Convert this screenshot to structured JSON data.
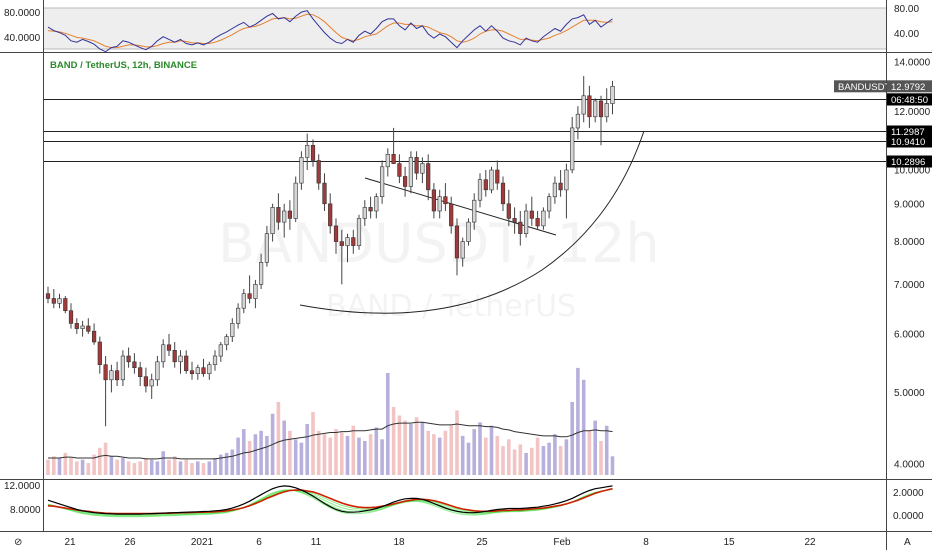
{
  "chart_title": "BAND / TetherUS, 12h, BINANCE",
  "watermark": {
    "symbol": "BANDUSDT, 12h",
    "name": "BAND / TetherUS"
  },
  "colors": {
    "up_candle": "#d6d6d6",
    "down_candle": "#a13a3a",
    "wick": "#444444",
    "vol_up": "#b8b0dc",
    "vol_down": "#f2c4c4",
    "vol_ma": "#333333",
    "rsi_line": "#333399",
    "rsi_signal": "#e6802f",
    "rsi_band": "#eeeeee",
    "title": "#2b8a2b",
    "level_line": "#222222",
    "bottom_fast": "#000000",
    "bottom_slow": "#cc2200",
    "bottom_ribbon": "#33dd33"
  },
  "chart_data": {
    "type": "candlestick",
    "x_axis": {
      "tick_labels": [
        "21",
        "26",
        "2021",
        "6",
        "11",
        "18",
        "25",
        "Feb",
        "8",
        "15",
        "22"
      ]
    },
    "price_axis": {
      "range": [
        3.5,
        14.5
      ],
      "tick_labels": [
        "14.0000",
        "12.0000",
        "10.0000",
        "9.0000",
        "8.0000",
        "7.0000",
        "6.0000",
        "5.0000",
        "4.0000"
      ],
      "ticks": [
        14,
        12,
        10,
        9,
        8,
        7,
        6,
        5,
        4
      ],
      "scale": "log"
    },
    "horizontal_levels": [
      {
        "label": "12.4729",
        "value": 12.4729
      },
      {
        "label": "11.2987",
        "value": 11.2987
      },
      {
        "label": "10.9410",
        "value": 10.941
      },
      {
        "label": "10.2896",
        "value": 10.2896
      }
    ],
    "last_price_tag": {
      "symbol": "BANDUSDT",
      "price": "12.9792",
      "countdown": "06:48:50",
      "value": 12.9792
    },
    "rsi": {
      "axis_labels": [
        "80.0000",
        "40.0000"
      ],
      "right_labels": [
        "80.00",
        "40.00"
      ],
      "band": [
        30,
        70
      ]
    },
    "bottom_indicator": {
      "left_labels": [
        "12.0000",
        "8.0000"
      ],
      "right_labels": [
        "2.0000",
        "0.0000"
      ]
    },
    "candles_ohlc": [
      [
        6.8,
        6.95,
        6.6,
        6.7
      ],
      [
        6.7,
        6.9,
        6.5,
        6.6
      ],
      [
        6.6,
        6.8,
        6.5,
        6.7
      ],
      [
        6.7,
        6.75,
        6.4,
        6.45
      ],
      [
        6.45,
        6.6,
        6.1,
        6.2
      ],
      [
        6.2,
        6.3,
        6.0,
        6.1
      ],
      [
        6.1,
        6.25,
        5.95,
        6.15
      ],
      [
        6.15,
        6.3,
        6.0,
        6.05
      ],
      [
        6.05,
        6.2,
        5.8,
        5.85
      ],
      [
        5.85,
        5.95,
        5.3,
        5.45
      ],
      [
        5.45,
        5.6,
        4.5,
        5.2
      ],
      [
        5.2,
        5.45,
        5.0,
        5.35
      ],
      [
        5.35,
        5.5,
        5.1,
        5.2
      ],
      [
        5.2,
        5.7,
        5.1,
        5.6
      ],
      [
        5.6,
        5.75,
        5.4,
        5.5
      ],
      [
        5.5,
        5.65,
        5.3,
        5.4
      ],
      [
        5.4,
        5.5,
        5.1,
        5.25
      ],
      [
        5.25,
        5.4,
        5.0,
        5.1
      ],
      [
        5.1,
        5.3,
        4.9,
        5.2
      ],
      [
        5.2,
        5.6,
        5.1,
        5.5
      ],
      [
        5.5,
        5.9,
        5.4,
        5.8
      ],
      [
        5.8,
        6.0,
        5.6,
        5.7
      ],
      [
        5.7,
        5.85,
        5.4,
        5.5
      ],
      [
        5.5,
        5.7,
        5.3,
        5.6
      ],
      [
        5.6,
        5.7,
        5.3,
        5.35
      ],
      [
        5.35,
        5.5,
        5.2,
        5.3
      ],
      [
        5.3,
        5.45,
        5.2,
        5.4
      ],
      [
        5.4,
        5.55,
        5.25,
        5.3
      ],
      [
        5.3,
        5.5,
        5.2,
        5.45
      ],
      [
        5.45,
        5.7,
        5.35,
        5.6
      ],
      [
        5.6,
        5.85,
        5.5,
        5.8
      ],
      [
        5.8,
        6.0,
        5.7,
        5.95
      ],
      [
        5.95,
        6.3,
        5.85,
        6.2
      ],
      [
        6.2,
        6.6,
        6.1,
        6.5
      ],
      [
        6.5,
        6.9,
        6.4,
        6.8
      ],
      [
        6.8,
        7.2,
        6.6,
        6.7
      ],
      [
        6.7,
        7.1,
        6.5,
        7.0
      ],
      [
        7.0,
        7.7,
        6.9,
        7.5
      ],
      [
        7.5,
        8.4,
        7.4,
        8.2
      ],
      [
        8.2,
        9.0,
        8.0,
        8.9
      ],
      [
        8.9,
        9.3,
        8.3,
        8.5
      ],
      [
        8.5,
        9.0,
        8.1,
        8.8
      ],
      [
        8.8,
        9.1,
        8.3,
        8.6
      ],
      [
        8.6,
        9.8,
        8.5,
        9.6
      ],
      [
        9.6,
        10.6,
        9.4,
        10.4
      ],
      [
        10.4,
        11.2,
        10.0,
        10.8
      ],
      [
        10.8,
        11.0,
        10.1,
        10.3
      ],
      [
        10.3,
        10.5,
        9.4,
        9.6
      ],
      [
        9.6,
        9.9,
        8.8,
        9.0
      ],
      [
        9.0,
        9.3,
        8.2,
        8.4
      ],
      [
        8.4,
        8.6,
        7.7,
        8.0
      ],
      [
        8.0,
        8.3,
        7.0,
        7.9
      ],
      [
        7.9,
        8.2,
        7.5,
        8.1
      ],
      [
        8.1,
        8.3,
        7.7,
        7.9
      ],
      [
        7.9,
        8.7,
        7.8,
        8.6
      ],
      [
        8.6,
        9.1,
        8.4,
        8.9
      ],
      [
        8.9,
        9.2,
        8.6,
        8.8
      ],
      [
        8.8,
        9.3,
        8.6,
        9.2
      ],
      [
        9.2,
        10.3,
        9.0,
        10.1
      ],
      [
        10.1,
        10.7,
        9.8,
        10.5
      ],
      [
        10.5,
        11.4,
        10.2,
        10.2
      ],
      [
        10.2,
        10.5,
        9.6,
        9.8
      ],
      [
        9.8,
        10.1,
        9.2,
        9.5
      ],
      [
        9.5,
        10.6,
        9.3,
        10.4
      ],
      [
        10.4,
        10.6,
        9.7,
        9.9
      ],
      [
        9.9,
        10.4,
        9.6,
        10.2
      ],
      [
        10.2,
        10.5,
        9.1,
        9.4
      ],
      [
        9.4,
        9.6,
        8.6,
        8.8
      ],
      [
        8.8,
        9.4,
        8.6,
        9.2
      ],
      [
        9.2,
        9.6,
        8.8,
        9.0
      ],
      [
        9.0,
        9.2,
        8.2,
        8.4
      ],
      [
        8.4,
        8.6,
        7.2,
        7.6
      ],
      [
        7.6,
        8.1,
        7.4,
        8.0
      ],
      [
        8.0,
        8.6,
        7.9,
        8.5
      ],
      [
        8.5,
        9.3,
        8.3,
        9.1
      ],
      [
        9.1,
        9.9,
        8.9,
        9.7
      ],
      [
        9.7,
        10.0,
        9.2,
        9.4
      ],
      [
        9.4,
        10.1,
        9.3,
        10.0
      ],
      [
        10.0,
        10.3,
        9.4,
        9.6
      ],
      [
        9.6,
        9.8,
        8.8,
        9.0
      ],
      [
        9.0,
        9.4,
        8.4,
        8.6
      ],
      [
        8.6,
        8.9,
        8.2,
        8.5
      ],
      [
        8.5,
        8.8,
        7.9,
        8.2
      ],
      [
        8.2,
        9.0,
        8.1,
        8.8
      ],
      [
        8.8,
        9.2,
        8.4,
        8.6
      ],
      [
        8.6,
        8.8,
        8.3,
        8.4
      ],
      [
        8.4,
        8.9,
        8.3,
        8.8
      ],
      [
        8.8,
        9.3,
        8.6,
        9.2
      ],
      [
        9.2,
        9.8,
        9.0,
        9.6
      ],
      [
        9.6,
        10.0,
        9.2,
        9.4
      ],
      [
        9.4,
        10.2,
        8.6,
        10.0
      ],
      [
        10.0,
        11.8,
        9.9,
        11.4
      ],
      [
        11.4,
        12.2,
        11.0,
        11.9
      ],
      [
        11.9,
        13.4,
        11.6,
        12.6
      ],
      [
        12.6,
        13.0,
        11.4,
        11.8
      ],
      [
        11.8,
        12.5,
        11.6,
        12.4
      ],
      [
        12.4,
        12.6,
        10.8,
        11.8
      ],
      [
        11.8,
        12.9,
        11.6,
        12.3
      ],
      [
        12.3,
        13.2,
        11.9,
        12.98
      ]
    ],
    "volumes": [
      0.9,
      1.1,
      1.0,
      1.3,
      1.0,
      0.8,
      0.9,
      0.7,
      1.2,
      1.6,
      1.9,
      1.1,
      0.9,
      1.0,
      0.8,
      0.7,
      0.8,
      1.0,
      0.9,
      0.8,
      1.4,
      0.9,
      1.1,
      0.8,
      0.9,
      0.7,
      0.8,
      0.7,
      0.8,
      1.0,
      1.2,
      1.3,
      1.5,
      2.2,
      2.7,
      2.0,
      2.4,
      2.6,
      2.3,
      3.6,
      4.3,
      3.2,
      2.6,
      2.1,
      1.9,
      3.0,
      3.7,
      2.6,
      2.4,
      2.2,
      2.7,
      2.5,
      2.3,
      2.9,
      2.2,
      2.0,
      2.4,
      2.8,
      2.1,
      6.0,
      4.0,
      3.5,
      3.2,
      3.0,
      3.4,
      3.1,
      2.6,
      2.4,
      2.2,
      2.6,
      2.9,
      3.8,
      2.3,
      1.9,
      2.7,
      3.1,
      2.2,
      2.9,
      2.3,
      1.7,
      2.1,
      1.5,
      1.8,
      1.3,
      1.6,
      2.2,
      1.7,
      1.9,
      2.4,
      1.7,
      2.1,
      4.3,
      6.3,
      5.6,
      2.6,
      3.2,
      2.0,
      2.9,
      1.1
    ],
    "volume_ma": [
      1.0,
      1.0,
      1.0,
      1.05,
      1.05,
      1.0,
      1.0,
      1.0,
      1.0,
      1.1,
      1.15,
      1.1,
      1.1,
      1.05,
      1.0,
      1.0,
      1.0,
      0.95,
      0.95,
      0.95,
      1.0,
      1.0,
      1.0,
      0.95,
      0.95,
      0.95,
      0.95,
      0.95,
      0.95,
      0.95,
      1.0,
      1.05,
      1.1,
      1.2,
      1.3,
      1.35,
      1.45,
      1.55,
      1.65,
      1.8,
      1.95,
      2.05,
      2.1,
      2.15,
      2.2,
      2.25,
      2.35,
      2.4,
      2.45,
      2.5,
      2.5,
      2.55,
      2.55,
      2.6,
      2.6,
      2.6,
      2.65,
      2.7,
      2.7,
      2.9,
      3.0,
      3.05,
      3.05,
      3.05,
      3.1,
      3.1,
      3.05,
      3.0,
      2.95,
      2.95,
      2.95,
      3.0,
      2.95,
      2.9,
      2.9,
      2.9,
      2.85,
      2.85,
      2.8,
      2.7,
      2.65,
      2.55,
      2.5,
      2.45,
      2.4,
      2.35,
      2.3,
      2.3,
      2.3,
      2.25,
      2.25,
      2.35,
      2.5,
      2.6,
      2.6,
      2.65,
      2.6,
      2.6,
      2.55
    ],
    "rsi_values": [
      60,
      55,
      52,
      48,
      40,
      38,
      42,
      39,
      35,
      28,
      24,
      30,
      32,
      40,
      38,
      34,
      30,
      27,
      32,
      40,
      46,
      42,
      38,
      42,
      36,
      34,
      37,
      34,
      38,
      44,
      49,
      53,
      58,
      63,
      67,
      60,
      64,
      70,
      76,
      80,
      72,
      74,
      68,
      76,
      82,
      84,
      72,
      62,
      52,
      44,
      38,
      36,
      42,
      38,
      48,
      54,
      50,
      58,
      68,
      72,
      72,
      62,
      56,
      66,
      58,
      62,
      50,
      44,
      50,
      46,
      38,
      30,
      40,
      48,
      56,
      62,
      54,
      62,
      54,
      44,
      40,
      38,
      34,
      44,
      40,
      38,
      46,
      52,
      58,
      54,
      64,
      72,
      74,
      78,
      64,
      70,
      60,
      66,
      72
    ],
    "rsi_signal": [
      55,
      54,
      53,
      51,
      48,
      45,
      44,
      42,
      40,
      36,
      32,
      30,
      30,
      32,
      34,
      34,
      33,
      31,
      31,
      33,
      36,
      38,
      38,
      40,
      39,
      37,
      37,
      36,
      36,
      38,
      41,
      45,
      49,
      54,
      58,
      60,
      61,
      64,
      68,
      72,
      73,
      74,
      72,
      73,
      76,
      79,
      78,
      74,
      68,
      60,
      52,
      45,
      42,
      40,
      42,
      46,
      48,
      50,
      56,
      62,
      66,
      66,
      64,
      64,
      62,
      62,
      60,
      56,
      52,
      50,
      46,
      40,
      38,
      40,
      44,
      50,
      54,
      56,
      56,
      54,
      50,
      46,
      42,
      42,
      41,
      40,
      42,
      44,
      48,
      51,
      55,
      60,
      65,
      70,
      70,
      70,
      68,
      67,
      68
    ],
    "bottom_fast": [
      10.2,
      9.8,
      9.4,
      9.0,
      8.6,
      8.2,
      7.9,
      7.7,
      7.5,
      7.4,
      7.3,
      7.25,
      7.2,
      7.2,
      7.2,
      7.2,
      7.2,
      7.25,
      7.3,
      7.35,
      7.4,
      7.45,
      7.5,
      7.55,
      7.6,
      7.65,
      7.7,
      7.75,
      7.8,
      7.9,
      8.0,
      8.2,
      8.5,
      8.9,
      9.4,
      10.0,
      10.7,
      11.4,
      12.1,
      12.7,
      13.1,
      13.3,
      13.2,
      12.9,
      12.4,
      11.8,
      11.1,
      10.3,
      9.5,
      8.8,
      8.2,
      7.8,
      7.6,
      7.6,
      7.7,
      7.9,
      8.1,
      8.4,
      8.8,
      9.3,
      9.8,
      10.2,
      10.5,
      10.6,
      10.6,
      10.4,
      10.0,
      9.5,
      9.0,
      8.5,
      8.1,
      7.8,
      7.6,
      7.5,
      7.5,
      7.6,
      7.8,
      8.0,
      8.2,
      8.3,
      8.4,
      8.4,
      8.4,
      8.5,
      8.6,
      8.7,
      8.9,
      9.1,
      9.4,
      9.7,
      10.1,
      10.6,
      11.2,
      11.8,
      12.3,
      12.7,
      12.9,
      13.1,
      13.3
    ],
    "bottom_slow": [
      9.0,
      8.9,
      8.7,
      8.5,
      8.3,
      8.1,
      7.9,
      7.8,
      7.6,
      7.5,
      7.4,
      7.35,
      7.3,
      7.3,
      7.3,
      7.3,
      7.3,
      7.3,
      7.3,
      7.35,
      7.4,
      7.4,
      7.45,
      7.5,
      7.5,
      7.55,
      7.6,
      7.6,
      7.65,
      7.7,
      7.8,
      7.9,
      8.1,
      8.3,
      8.6,
      9.0,
      9.5,
      10.0,
      10.6,
      11.1,
      11.6,
      12.0,
      12.3,
      12.4,
      12.4,
      12.2,
      12.0,
      11.6,
      11.1,
      10.6,
      10.1,
      9.6,
      9.2,
      8.9,
      8.7,
      8.6,
      8.6,
      8.7,
      8.9,
      9.1,
      9.4,
      9.7,
      10.0,
      10.2,
      10.4,
      10.4,
      10.3,
      10.1,
      9.8,
      9.4,
      9.0,
      8.6,
      8.3,
      8.1,
      7.9,
      7.8,
      7.8,
      7.8,
      7.9,
      8.0,
      8.0,
      8.1,
      8.1,
      8.2,
      8.3,
      8.4,
      8.5,
      8.7,
      8.9,
      9.1,
      9.4,
      9.8,
      10.2,
      10.7,
      11.2,
      11.7,
      12.1,
      12.4,
      12.7
    ]
  }
}
